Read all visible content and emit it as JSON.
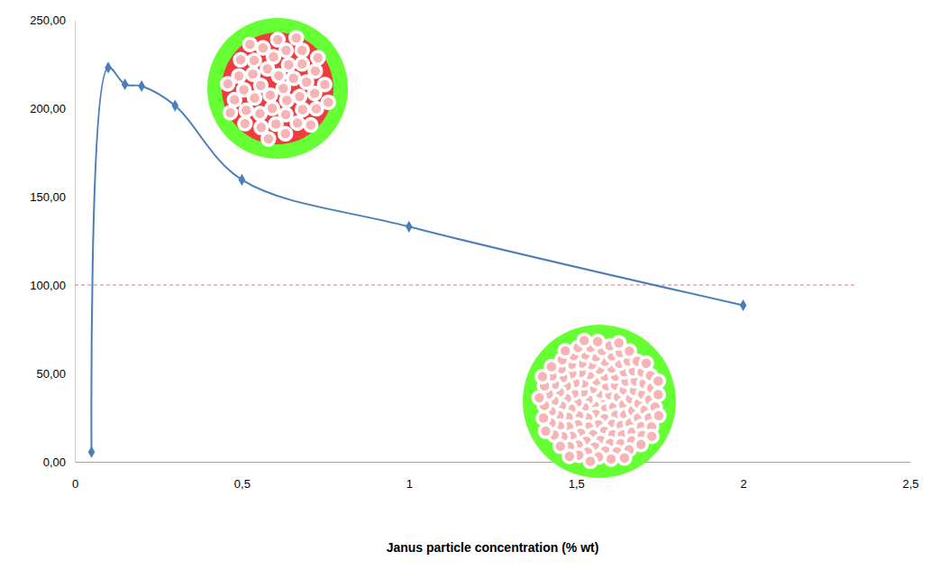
{
  "chart_data": {
    "type": "line",
    "x_label": "Janus particle concentration (% wt)",
    "x": [
      0.05,
      0.1,
      0.15,
      0.2,
      0.3,
      0.5,
      1,
      2
    ],
    "values": [
      5.5,
      223,
      213.5,
      212.5,
      201.5,
      159.5,
      133,
      88.5
    ],
    "color": "#4a7ebb",
    "marker": "diamond",
    "line_style": "smooth",
    "reference_line": 100,
    "xlim": [
      0,
      2.5
    ],
    "xticks": [
      0,
      {
        "value": 0.5,
        "label": "0,5"
      },
      1,
      {
        "value": 1.5,
        "label": "1,5"
      },
      2,
      {
        "value": 2.5,
        "label": "2,5"
      }
    ],
    "ylim": [
      0,
      250
    ],
    "yticks": [
      {
        "value": 0,
        "label": "0,00"
      },
      {
        "value": 50,
        "label": "50,00"
      },
      {
        "value": 100,
        "label": "100,00"
      },
      {
        "value": 150,
        "label": "150,00"
      },
      {
        "value": 200,
        "label": "200,00"
      },
      {
        "value": 250,
        "label": "250,00"
      }
    ],
    "grid": false
  }
}
